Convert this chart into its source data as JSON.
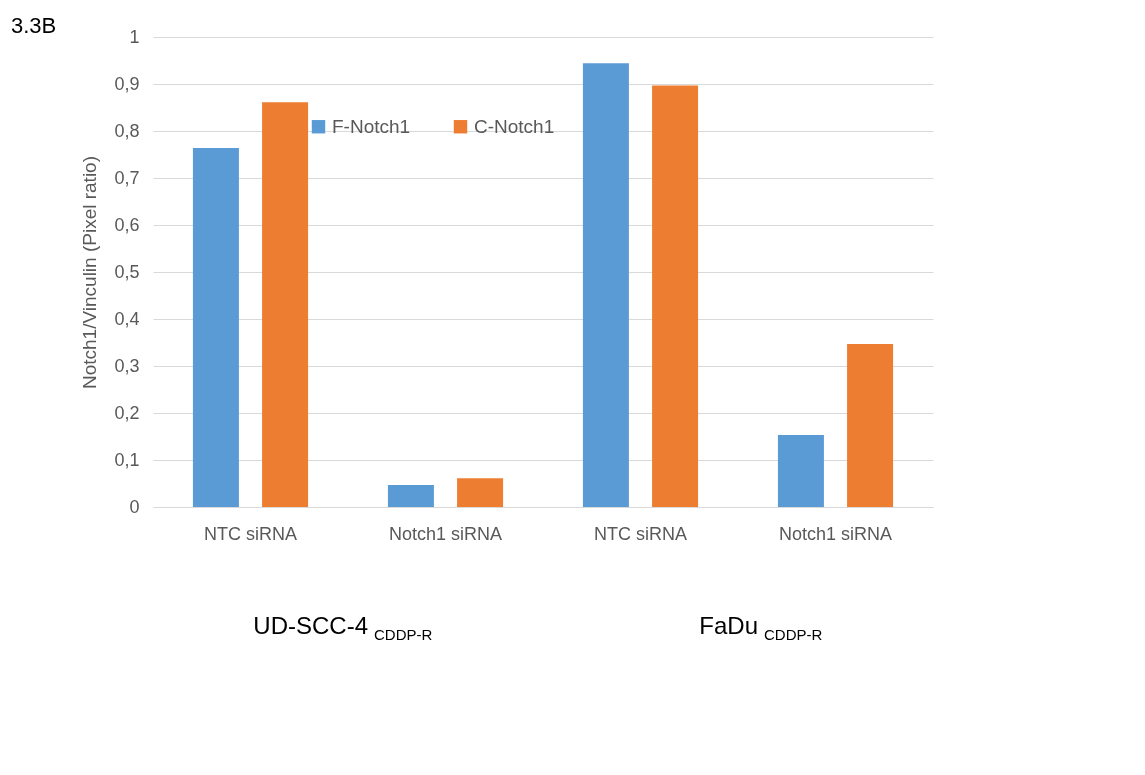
{
  "chart_data": {
    "type": "bar",
    "title": "3.3B",
    "ylabel": "Notch1/Vinculin (Pixel ratio)",
    "categories": [
      "NTC siRNA",
      "Notch1 siRNA",
      "NTC siRNA",
      "Notch1 siRNA"
    ],
    "series": [
      {
        "name": "F-Notch1",
        "color": "#5b9bd5",
        "values": [
          0.764,
          0.047,
          0.944,
          0.153
        ]
      },
      {
        "name": "C-Notch1",
        "color": "#ed7d31",
        "values": [
          0.861,
          0.061,
          0.897,
          0.347
        ]
      }
    ],
    "ylim": [
      0,
      1
    ],
    "yticks": [
      0,
      {
        "value": 0.1,
        "label": "0,1"
      },
      {
        "value": 0.2,
        "label": "0,2"
      },
      {
        "value": 0.3,
        "label": "0,3"
      },
      {
        "value": 0.4,
        "label": "0,4"
      },
      {
        "value": 0.5,
        "label": "0,5"
      },
      {
        "value": 0.6,
        "label": "0,6"
      },
      {
        "value": 0.7,
        "label": "0,7"
      },
      {
        "value": 0.8,
        "label": "0,8"
      },
      {
        "value": 0.9,
        "label": "0,9"
      },
      1
    ],
    "grid": "y",
    "legend": "top",
    "annotations": [
      "UD-SCC-4 $_{CDDP-R}$",
      "FaDu $_{CDDP-R}$"
    ]
  }
}
